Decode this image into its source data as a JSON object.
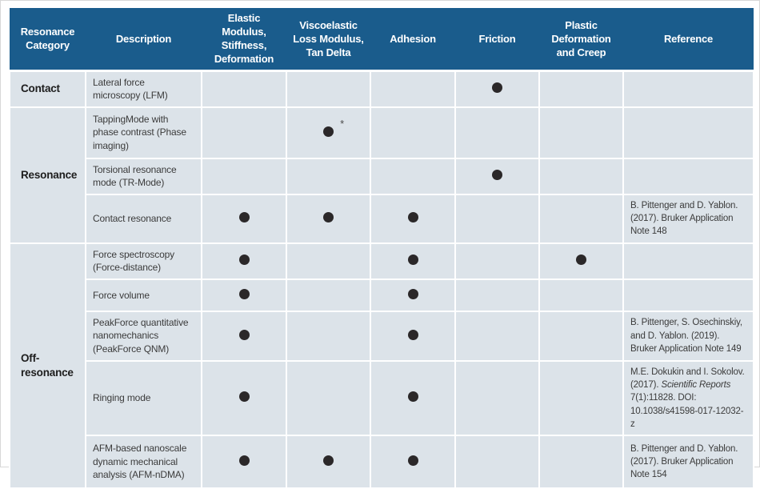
{
  "colors": {
    "header_bg": "#1A5C8C",
    "header_text": "#ffffff",
    "cell_bg": "#DCE3E9",
    "grid": "#ffffff",
    "dot": "#2B2829",
    "body_text": "#3B3B3B"
  },
  "asterisk_symbol": "*",
  "table": {
    "columns": [
      {
        "key": "category",
        "label": "Resonance Category"
      },
      {
        "key": "description",
        "label": "Description"
      },
      {
        "key": "elastic",
        "label": "Elastic Modulus, Stiffness, Deformation"
      },
      {
        "key": "viscoelastic",
        "label": "Viscoelastic Loss Modulus, Tan Delta"
      },
      {
        "key": "adhesion",
        "label": "Adhesion"
      },
      {
        "key": "friction",
        "label": "Friction"
      },
      {
        "key": "plastic",
        "label": "Plastic Deformation and Creep"
      },
      {
        "key": "reference",
        "label": "Reference"
      }
    ],
    "capability_keys": [
      "elastic",
      "viscoelastic",
      "adhesion",
      "friction",
      "plastic"
    ],
    "groups": [
      {
        "category": "Contact",
        "rows": [
          {
            "description": "Lateral force microscopy (LFM)",
            "marks": {
              "friction": "dot"
            },
            "reference": []
          }
        ]
      },
      {
        "category": "Resonance",
        "rows": [
          {
            "description": "TappingMode with phase contrast (Phase imaging)",
            "marks": {
              "viscoelastic": "dot-asterisk"
            },
            "reference": []
          },
          {
            "description": "Torsional resonance mode (TR-Mode)",
            "marks": {
              "friction": "dot"
            },
            "reference": []
          },
          {
            "description": "Contact resonance",
            "marks": {
              "elastic": "dot",
              "viscoelastic": "dot",
              "adhesion": "dot"
            },
            "reference": [
              {
                "text": "B. Pittenger and D. Yablon. (2017). Bruker Application Note 148",
                "italic": false
              }
            ]
          }
        ]
      },
      {
        "category": "Off-resonance",
        "rows": [
          {
            "description": "Force spectroscopy (Force-distance)",
            "marks": {
              "elastic": "dot",
              "adhesion": "dot",
              "plastic": "dot"
            },
            "reference": []
          },
          {
            "description": "Force volume",
            "marks": {
              "elastic": "dot",
              "adhesion": "dot"
            },
            "reference": []
          },
          {
            "description": "PeakForce quantitative nanomechanics (PeakForce QNM)",
            "marks": {
              "elastic": "dot",
              "adhesion": "dot"
            },
            "reference": [
              {
                "text": "B. Pittenger, S. Osechinskiy, and D. Yablon. (2019). Bruker Application Note 149",
                "italic": false
              }
            ]
          },
          {
            "description": "Ringing mode",
            "marks": {
              "elastic": "dot",
              "adhesion": "dot"
            },
            "reference": [
              {
                "text": "M.E. Dokukin and I. Sokolov. (2017). ",
                "italic": false
              },
              {
                "text": "Scientific Reports",
                "italic": true
              },
              {
                "text": " 7(1):11828. DOI: 10.1038/s41598-017-12032-z",
                "italic": false
              }
            ]
          },
          {
            "description": "AFM-based nanoscale dynamic mechanical analysis (AFM-nDMA)",
            "marks": {
              "elastic": "dot",
              "viscoelastic": "dot",
              "adhesion": "dot"
            },
            "reference": [
              {
                "text": "B. Pittenger and D. Yablon. (2017). Bruker Application Note 154",
                "italic": false
              }
            ]
          }
        ]
      }
    ]
  }
}
